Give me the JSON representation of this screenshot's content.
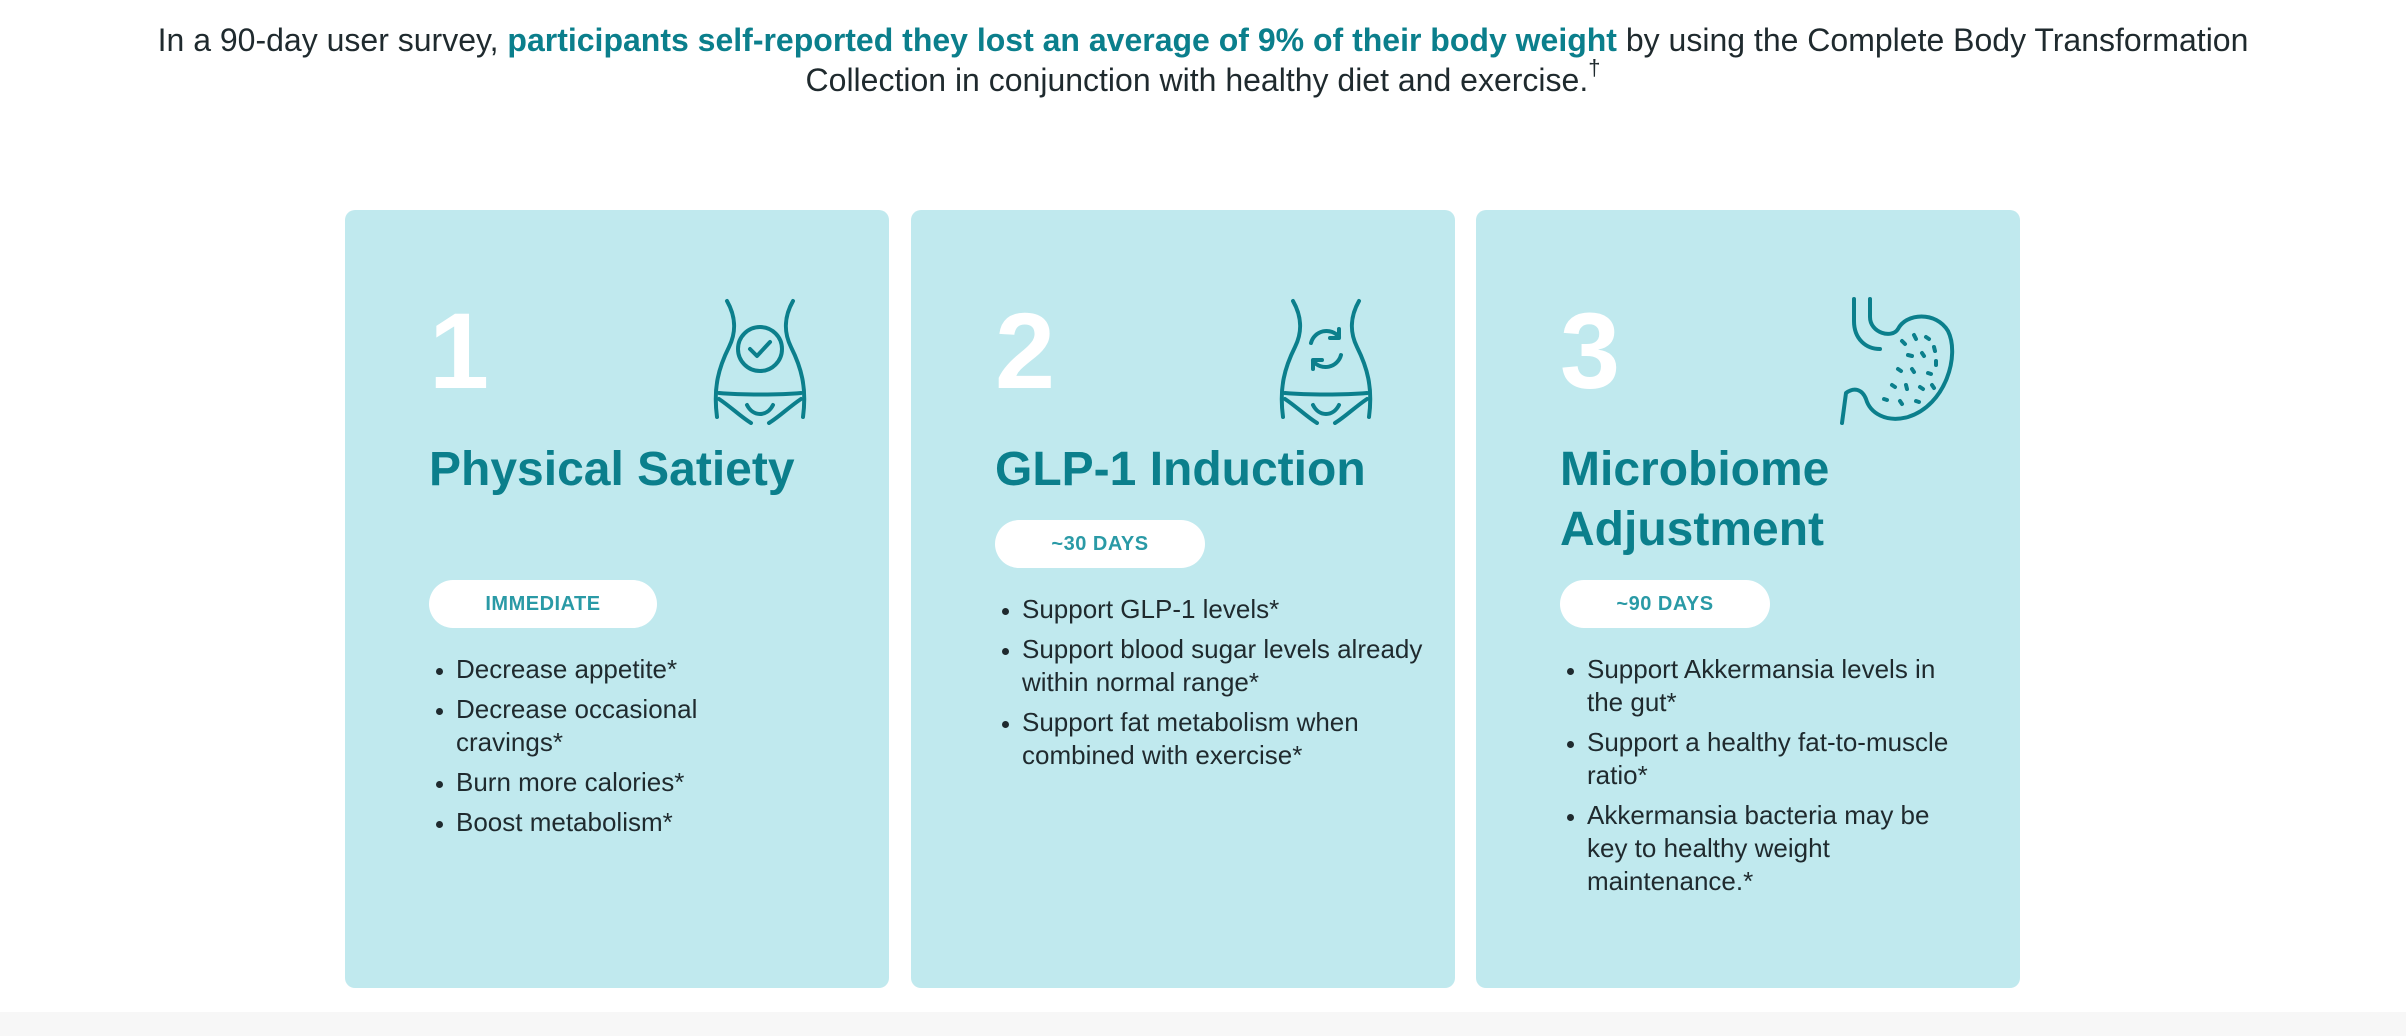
{
  "intro": {
    "part1": "In a 90-day user survey, ",
    "highlight": "participants self-reported they lost an average of 9% of their body weight",
    "part2": " by using the Complete Body Transformation",
    "line2": "Collection in conjunction with healthy diet and exercise.",
    "dagger": "†"
  },
  "cards": [
    {
      "number": "1",
      "icon": "waist-check-icon",
      "title": "Physical Satiety",
      "badge": "IMMEDIATE",
      "items": [
        "Decrease appetite*",
        "Decrease occasional cravings*",
        "Burn more calories*",
        "Boost metabolism*"
      ]
    },
    {
      "number": "2",
      "icon": "waist-refresh-icon",
      "title": "GLP-1 Induction",
      "badge": "~30 DAYS",
      "items": [
        "Support GLP-1 levels*",
        "Support blood sugar levels already within normal range*",
        "Support fat metabolism when combined with exercise*"
      ]
    },
    {
      "number": "3",
      "icon": "stomach-icon",
      "title": "Microbiome Adjustment",
      "badge": "~90 DAYS",
      "items": [
        "Support Akkermansia levels in the gut*",
        "Support a healthy fat-to-muscle ratio*",
        "Akkermansia bacteria may be key to healthy weight maintenance.*"
      ]
    }
  ],
  "colors": {
    "card_bg": "#c0e9ee",
    "accent": "#0b7f8c",
    "badge_text": "#2a9aa6"
  }
}
